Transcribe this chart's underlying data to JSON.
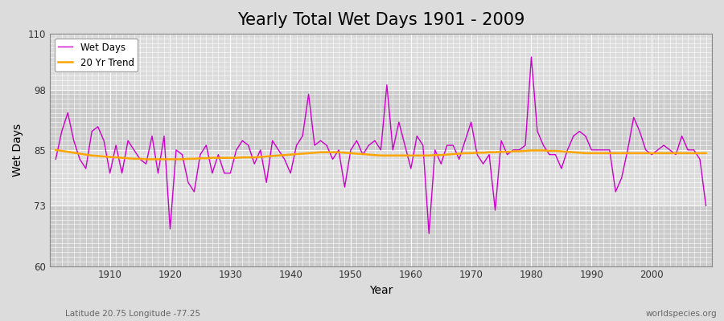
{
  "title": "Yearly Total Wet Days 1901 - 2009",
  "xlabel": "Year",
  "ylabel": "Wet Days",
  "subtitle": "Latitude 20.75 Longitude -77.25",
  "watermark": "worldspecies.org",
  "ylim": [
    60,
    110
  ],
  "yticks": [
    60,
    73,
    85,
    98,
    110
  ],
  "xticks": [
    1910,
    1920,
    1930,
    1940,
    1950,
    1960,
    1970,
    1980,
    1990,
    2000
  ],
  "legend_labels": [
    "Wet Days",
    "20 Yr Trend"
  ],
  "wet_days_color": "#cc00cc",
  "trend_color": "#ffa500",
  "bg_color": "#dcdcdc",
  "years": [
    1901,
    1902,
    1903,
    1904,
    1905,
    1906,
    1907,
    1908,
    1909,
    1910,
    1911,
    1912,
    1913,
    1914,
    1915,
    1916,
    1917,
    1918,
    1919,
    1920,
    1921,
    1922,
    1923,
    1924,
    1925,
    1926,
    1927,
    1928,
    1929,
    1930,
    1931,
    1932,
    1933,
    1934,
    1935,
    1936,
    1937,
    1938,
    1939,
    1940,
    1941,
    1942,
    1943,
    1944,
    1945,
    1946,
    1947,
    1948,
    1949,
    1950,
    1951,
    1952,
    1953,
    1954,
    1955,
    1956,
    1957,
    1958,
    1959,
    1960,
    1961,
    1962,
    1963,
    1964,
    1965,
    1966,
    1967,
    1968,
    1969,
    1970,
    1971,
    1972,
    1973,
    1974,
    1975,
    1976,
    1977,
    1978,
    1979,
    1980,
    1981,
    1982,
    1983,
    1984,
    1985,
    1986,
    1987,
    1988,
    1989,
    1990,
    1991,
    1992,
    1993,
    1994,
    1995,
    1996,
    1997,
    1998,
    1999,
    2000,
    2001,
    2002,
    2003,
    2004,
    2005,
    2006,
    2007,
    2008,
    2009
  ],
  "wet_days": [
    83,
    89,
    93,
    87,
    83,
    81,
    89,
    90,
    87,
    80,
    86,
    80,
    87,
    85,
    83,
    82,
    88,
    80,
    88,
    68,
    85,
    84,
    78,
    76,
    84,
    86,
    80,
    84,
    80,
    80,
    85,
    87,
    86,
    82,
    85,
    78,
    87,
    85,
    83,
    80,
    86,
    88,
    97,
    86,
    87,
    86,
    83,
    85,
    77,
    85,
    87,
    84,
    86,
    87,
    85,
    99,
    85,
    91,
    86,
    81,
    88,
    86,
    67,
    85,
    82,
    86,
    86,
    83,
    87,
    91,
    84,
    82,
    84,
    72,
    87,
    84,
    85,
    85,
    86,
    105,
    89,
    86,
    84,
    84,
    81,
    85,
    88,
    89,
    88,
    85,
    85,
    85,
    85,
    76,
    79,
    85,
    92,
    89,
    85,
    84,
    85,
    86,
    85,
    84,
    88,
    85,
    85,
    83,
    73
  ],
  "trend": [
    85.0,
    84.8,
    84.6,
    84.4,
    84.2,
    84.0,
    83.8,
    83.7,
    83.6,
    83.5,
    83.4,
    83.3,
    83.2,
    83.1,
    83.1,
    83.0,
    83.0,
    83.0,
    83.0,
    83.0,
    83.0,
    83.0,
    83.1,
    83.1,
    83.2,
    83.2,
    83.3,
    83.3,
    83.3,
    83.3,
    83.3,
    83.4,
    83.4,
    83.4,
    83.5,
    83.6,
    83.7,
    83.8,
    83.9,
    84.0,
    84.1,
    84.2,
    84.3,
    84.4,
    84.5,
    84.5,
    84.5,
    84.5,
    84.4,
    84.3,
    84.2,
    84.1,
    84.0,
    83.9,
    83.8,
    83.8,
    83.8,
    83.8,
    83.8,
    83.8,
    83.8,
    83.8,
    83.8,
    83.9,
    83.9,
    84.0,
    84.1,
    84.2,
    84.3,
    84.3,
    84.4,
    84.4,
    84.5,
    84.5,
    84.6,
    84.6,
    84.7,
    84.7,
    84.8,
    84.9,
    84.9,
    84.9,
    84.8,
    84.8,
    84.7,
    84.6,
    84.5,
    84.4,
    84.3,
    84.3,
    84.3,
    84.3,
    84.3,
    84.3,
    84.3,
    84.3,
    84.3,
    84.3,
    84.3,
    84.3,
    84.3,
    84.3,
    84.3,
    84.3,
    84.3,
    84.3,
    84.3,
    84.3,
    84.3
  ]
}
